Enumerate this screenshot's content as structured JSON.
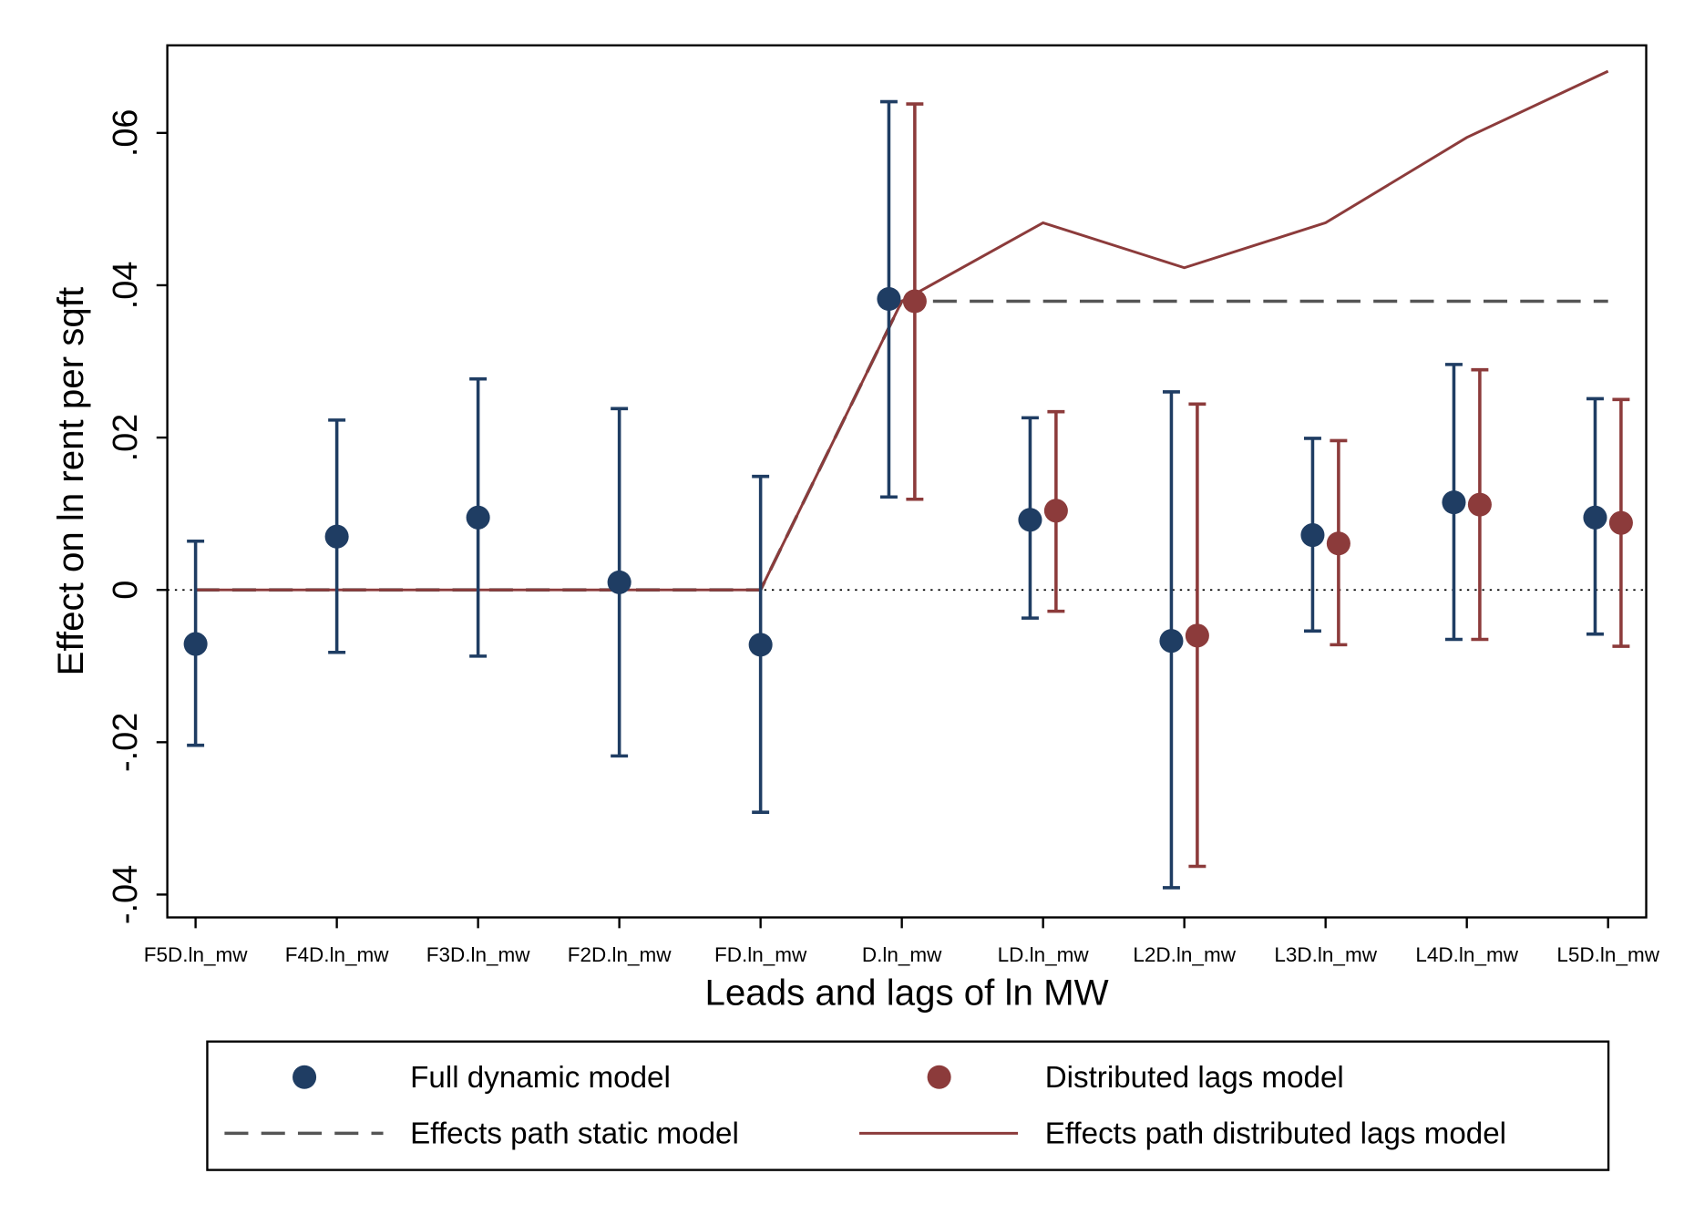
{
  "chart_data": {
    "type": "coefplot",
    "ylabel": "Effect on ln rent per sqft",
    "xlabel": "Leads and lags of ln MW",
    "categories": [
      "F5D.ln_mw",
      "F4D.ln_mw",
      "F3D.ln_mw",
      "F2D.ln_mw",
      "FD.ln_mw",
      "D.ln_mw",
      "LD.ln_mw",
      "L2D.ln_mw",
      "L3D.ln_mw",
      "L4D.ln_mw",
      "L5D.ln_mw"
    ],
    "ylim": [
      -0.043,
      0.0715
    ],
    "yticks": [
      {
        "value": -0.04,
        "label": "-.04"
      },
      {
        "value": -0.02,
        "label": "-.02"
      },
      0,
      {
        "value": 0.02,
        "label": ".02"
      },
      {
        "value": 0.04,
        "label": ".04"
      },
      {
        "value": 0.06,
        "label": ".06"
      }
    ],
    "series": [
      {
        "name": "Full dynamic model",
        "kind": "points",
        "color": "#1f3d63",
        "values": [
          -0.0071,
          0.007,
          0.0095,
          0.001,
          -0.0072,
          0.0382,
          0.0092,
          -0.0067,
          0.0072,
          0.0115,
          0.0095
        ],
        "ci_low": [
          -0.0204,
          -0.0082,
          -0.0087,
          -0.0218,
          -0.0292,
          0.0122,
          -0.0037,
          -0.0391,
          -0.0054,
          -0.0065,
          -0.0058
        ],
        "ci_high": [
          0.0064,
          0.0223,
          0.0277,
          0.0238,
          0.0149,
          0.0641,
          0.0226,
          0.026,
          0.0199,
          0.0296,
          0.0251
        ]
      },
      {
        "name": "Distributed lags model",
        "kind": "points",
        "color": "#8c3b3b",
        "values": [
          null,
          null,
          null,
          null,
          null,
          0.0379,
          0.0104,
          -0.006,
          0.0061,
          0.0112,
          0.0088
        ],
        "ci_low": [
          null,
          null,
          null,
          null,
          null,
          0.0119,
          -0.0028,
          -0.0363,
          -0.0072,
          -0.0065,
          -0.0074
        ],
        "ci_high": [
          null,
          null,
          null,
          null,
          null,
          0.0638,
          0.0234,
          0.0244,
          0.0196,
          0.0289,
          0.025
        ]
      },
      {
        "name": "Effects path static model",
        "kind": "line",
        "dashed": true,
        "color": "#555555",
        "values": [
          0,
          0,
          0,
          0,
          0,
          0.0379,
          0.0379,
          0.0379,
          0.0379,
          0.0379,
          0.0379
        ]
      },
      {
        "name": "Effects path distributed lags model",
        "kind": "line",
        "dashed": false,
        "color": "#8c3b3b",
        "values": [
          0,
          0,
          0,
          0,
          0,
          0.0379,
          0.0482,
          0.0423,
          0.0482,
          0.0594,
          0.0681
        ]
      }
    ]
  }
}
